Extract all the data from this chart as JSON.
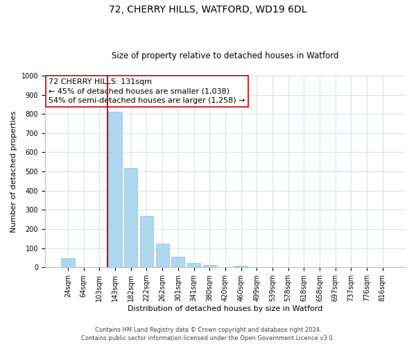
{
  "title1": "72, CHERRY HILLS, WATFORD, WD19 6DL",
  "title2": "Size of property relative to detached houses in Watford",
  "xlabel": "Distribution of detached houses by size in Watford",
  "ylabel": "Number of detached properties",
  "bar_labels": [
    "24sqm",
    "64sqm",
    "103sqm",
    "143sqm",
    "182sqm",
    "222sqm",
    "262sqm",
    "301sqm",
    "341sqm",
    "380sqm",
    "420sqm",
    "460sqm",
    "499sqm",
    "539sqm",
    "578sqm",
    "618sqm",
    "658sqm",
    "697sqm",
    "737sqm",
    "776sqm",
    "816sqm"
  ],
  "bar_values": [
    47,
    0,
    0,
    810,
    520,
    270,
    125,
    55,
    22,
    13,
    0,
    8,
    0,
    0,
    0,
    0,
    0,
    0,
    0,
    0,
    0
  ],
  "bar_color": "#add8f0",
  "bar_edge_color": "#8bbcda",
  "vline_color": "#cc0000",
  "annotation_title": "72 CHERRY HILLS: 131sqm",
  "annotation_line1": "← 45% of detached houses are smaller (1,038)",
  "annotation_line2": "54% of semi-detached houses are larger (1,258) →",
  "box_edge_color": "#cc0000",
  "ylim": [
    0,
    1000
  ],
  "yticks": [
    0,
    100,
    200,
    300,
    400,
    500,
    600,
    700,
    800,
    900,
    1000
  ],
  "footer1": "Contains HM Land Registry data © Crown copyright and database right 2024.",
  "footer2": "Contains public sector information licensed under the Open Government Licence v3.0.",
  "grid_color": "#d5e5f0",
  "title1_fontsize": 10,
  "title2_fontsize": 8.5,
  "ylabel_fontsize": 8,
  "xlabel_fontsize": 8,
  "tick_fontsize": 7,
  "ann_fontsize": 8,
  "footer_fontsize": 6
}
